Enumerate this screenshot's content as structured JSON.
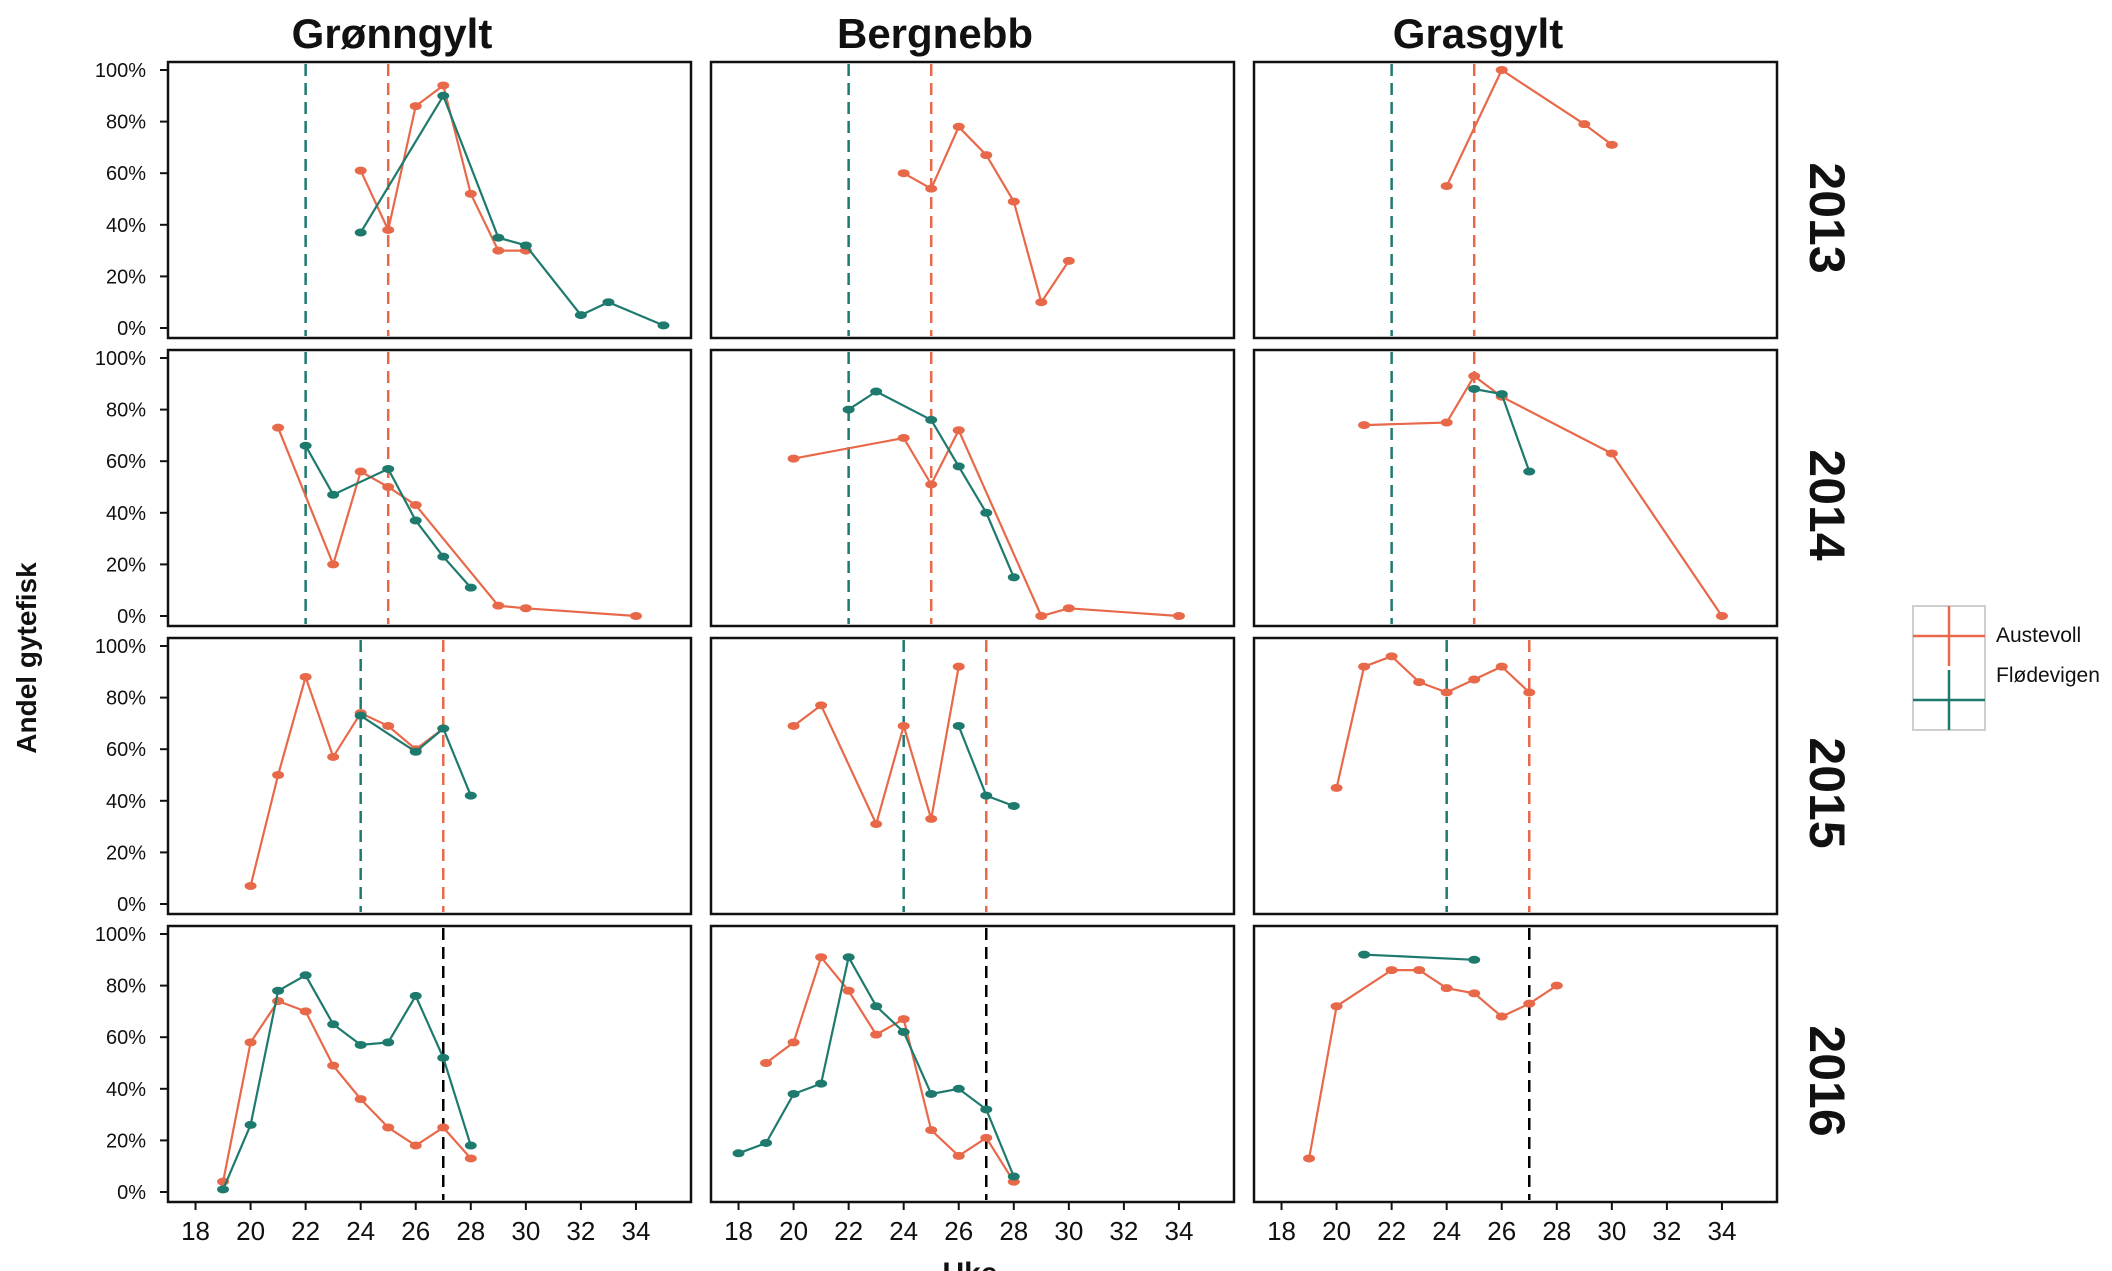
{
  "chart_data": {
    "type": "line",
    "columns": [
      "Grønngylt",
      "Bergnebb",
      "Grasgylt"
    ],
    "rows": [
      "2013",
      "2014",
      "2015",
      "2016"
    ],
    "ylabel": "Andel gytefisk",
    "xlabel": "Uke",
    "x_ticks": [
      "18",
      "20",
      "22",
      "24",
      "26",
      "28",
      "30",
      "32",
      "34"
    ],
    "y_ticks": [
      "0%",
      "20%",
      "40%",
      "60%",
      "80%",
      "100%"
    ],
    "xlim": [
      17,
      36
    ],
    "ylim": [
      0,
      100
    ],
    "legend": {
      "position": "right",
      "items": [
        {
          "name": "Austevoll",
          "color": "#E8694A"
        },
        {
          "name": "Flødevigen",
          "color": "#1F7A6E"
        }
      ]
    },
    "colors": {
      "Austevoll": "#E8694A",
      "Flødevigen": "#1F7A6E",
      "combined": "#000000"
    },
    "panels": [
      {
        "row": "2013",
        "column": "Grønngylt",
        "series": [
          {
            "name": "Austevoll",
            "x": [
              24,
              25,
              26,
              27,
              28,
              29,
              30
            ],
            "y": [
              61,
              38,
              86,
              94,
              52,
              30,
              30
            ]
          },
          {
            "name": "Flødevigen",
            "x": [
              24,
              27,
              29,
              30,
              32,
              33,
              35
            ],
            "y": [
              37,
              90,
              35,
              32,
              5,
              10,
              1
            ]
          }
        ],
        "vlines": [
          {
            "series": "Flødevigen",
            "x": 22
          },
          {
            "series": "Austevoll",
            "x": 25
          }
        ]
      },
      {
        "row": "2013",
        "column": "Bergnebb",
        "series": [
          {
            "name": "Austevoll",
            "x": [
              24,
              25,
              26,
              27,
              28,
              29,
              30
            ],
            "y": [
              60,
              54,
              78,
              67,
              49,
              10,
              26
            ]
          }
        ],
        "vlines": [
          {
            "series": "Flødevigen",
            "x": 22
          },
          {
            "series": "Austevoll",
            "x": 25
          }
        ]
      },
      {
        "row": "2013",
        "column": "Grasgylt",
        "series": [
          {
            "name": "Austevoll",
            "x": [
              24,
              26,
              29,
              30
            ],
            "y": [
              55,
              100,
              79,
              71
            ]
          }
        ],
        "vlines": [
          {
            "series": "Flødevigen",
            "x": 22
          },
          {
            "series": "Austevoll",
            "x": 25
          }
        ]
      },
      {
        "row": "2014",
        "column": "Grønngylt",
        "series": [
          {
            "name": "Austevoll",
            "x": [
              21,
              23,
              24,
              25,
              26,
              29,
              30,
              34
            ],
            "y": [
              73,
              20,
              56,
              50,
              43,
              4,
              3,
              0
            ]
          },
          {
            "name": "Flødevigen",
            "x": [
              22,
              23,
              25,
              26,
              27,
              28
            ],
            "y": [
              66,
              47,
              57,
              37,
              23,
              11
            ]
          }
        ],
        "vlines": [
          {
            "series": "Flødevigen",
            "x": 22
          },
          {
            "series": "Austevoll",
            "x": 25
          }
        ]
      },
      {
        "row": "2014",
        "column": "Bergnebb",
        "series": [
          {
            "name": "Austevoll",
            "x": [
              20,
              24,
              25,
              26,
              29,
              30,
              34
            ],
            "y": [
              61,
              69,
              51,
              72,
              0,
              3,
              0
            ]
          },
          {
            "name": "Flødevigen",
            "x": [
              22,
              23,
              25,
              26,
              27,
              28
            ],
            "y": [
              80,
              87,
              76,
              58,
              40,
              15
            ]
          }
        ],
        "vlines": [
          {
            "series": "Flødevigen",
            "x": 22
          },
          {
            "series": "Austevoll",
            "x": 25
          }
        ]
      },
      {
        "row": "2014",
        "column": "Grasgylt",
        "series": [
          {
            "name": "Austevoll",
            "x": [
              21,
              24,
              25,
              26,
              30,
              34
            ],
            "y": [
              74,
              75,
              93,
              85,
              63,
              0
            ]
          },
          {
            "name": "Flødevigen",
            "x": [
              25,
              26,
              27
            ],
            "y": [
              88,
              86,
              56
            ]
          }
        ],
        "vlines": [
          {
            "series": "Flødevigen",
            "x": 22
          },
          {
            "series": "Austevoll",
            "x": 25
          }
        ]
      },
      {
        "row": "2015",
        "column": "Grønngylt",
        "series": [
          {
            "name": "Austevoll",
            "x": [
              20,
              21,
              22,
              23,
              24,
              25,
              26,
              27
            ],
            "y": [
              7,
              50,
              88,
              57,
              74,
              69,
              60,
              68
            ]
          },
          {
            "name": "Flødevigen",
            "x": [
              24,
              26,
              27,
              28
            ],
            "y": [
              73,
              59,
              68,
              42
            ]
          }
        ],
        "vlines": [
          {
            "series": "Flødevigen",
            "x": 24
          },
          {
            "series": "Austevoll",
            "x": 27
          }
        ]
      },
      {
        "row": "2015",
        "column": "Bergnebb",
        "series": [
          {
            "name": "Austevoll",
            "x": [
              20,
              21,
              23,
              24,
              25,
              26
            ],
            "y": [
              69,
              77,
              31,
              69,
              33,
              92
            ]
          },
          {
            "name": "Flødevigen",
            "x": [
              26,
              27,
              28
            ],
            "y": [
              69,
              42,
              38
            ]
          }
        ],
        "vlines": [
          {
            "series": "Flødevigen",
            "x": 24
          },
          {
            "series": "Austevoll",
            "x": 27
          }
        ]
      },
      {
        "row": "2015",
        "column": "Grasgylt",
        "series": [
          {
            "name": "Austevoll",
            "x": [
              20,
              21,
              22,
              23,
              24,
              25,
              26,
              27
            ],
            "y": [
              45,
              92,
              96,
              86,
              82,
              87,
              92,
              82
            ]
          }
        ],
        "vlines": [
          {
            "series": "Flødevigen",
            "x": 24
          },
          {
            "series": "Austevoll",
            "x": 27
          }
        ]
      },
      {
        "row": "2016",
        "column": "Grønngylt",
        "series": [
          {
            "name": "Austevoll",
            "x": [
              19,
              20,
              21,
              22,
              23,
              24,
              25,
              26,
              27,
              28
            ],
            "y": [
              4,
              58,
              74,
              70,
              49,
              36,
              25,
              18,
              25,
              13
            ]
          },
          {
            "name": "Flødevigen",
            "x": [
              19,
              20,
              21,
              22,
              23,
              24,
              25,
              26,
              27,
              28
            ],
            "y": [
              1,
              26,
              78,
              84,
              65,
              57,
              58,
              76,
              52,
              18
            ]
          }
        ],
        "vlines": [
          {
            "series": "combined",
            "x": 27
          }
        ]
      },
      {
        "row": "2016",
        "column": "Bergnebb",
        "series": [
          {
            "name": "Austevoll",
            "x": [
              19,
              20,
              21,
              22,
              23,
              24,
              25,
              26,
              27,
              28
            ],
            "y": [
              50,
              58,
              91,
              78,
              61,
              67,
              24,
              14,
              21,
              4
            ]
          },
          {
            "name": "Flødevigen",
            "x": [
              18,
              19,
              20,
              21,
              22,
              23,
              24,
              25,
              26,
              27,
              28
            ],
            "y": [
              15,
              19,
              38,
              42,
              91,
              72,
              62,
              38,
              40,
              32,
              6
            ]
          }
        ],
        "vlines": [
          {
            "series": "combined",
            "x": 27
          }
        ]
      },
      {
        "row": "2016",
        "column": "Grasgylt",
        "series": [
          {
            "name": "Austevoll",
            "x": [
              19,
              20,
              22,
              23,
              24,
              25,
              26,
              27,
              28
            ],
            "y": [
              13,
              72,
              86,
              86,
              79,
              77,
              68,
              73,
              80
            ]
          },
          {
            "name": "Flødevigen",
            "x": [
              21,
              25
            ],
            "y": [
              92,
              90
            ]
          }
        ],
        "vlines": [
          {
            "series": "combined",
            "x": 27
          }
        ]
      }
    ]
  }
}
